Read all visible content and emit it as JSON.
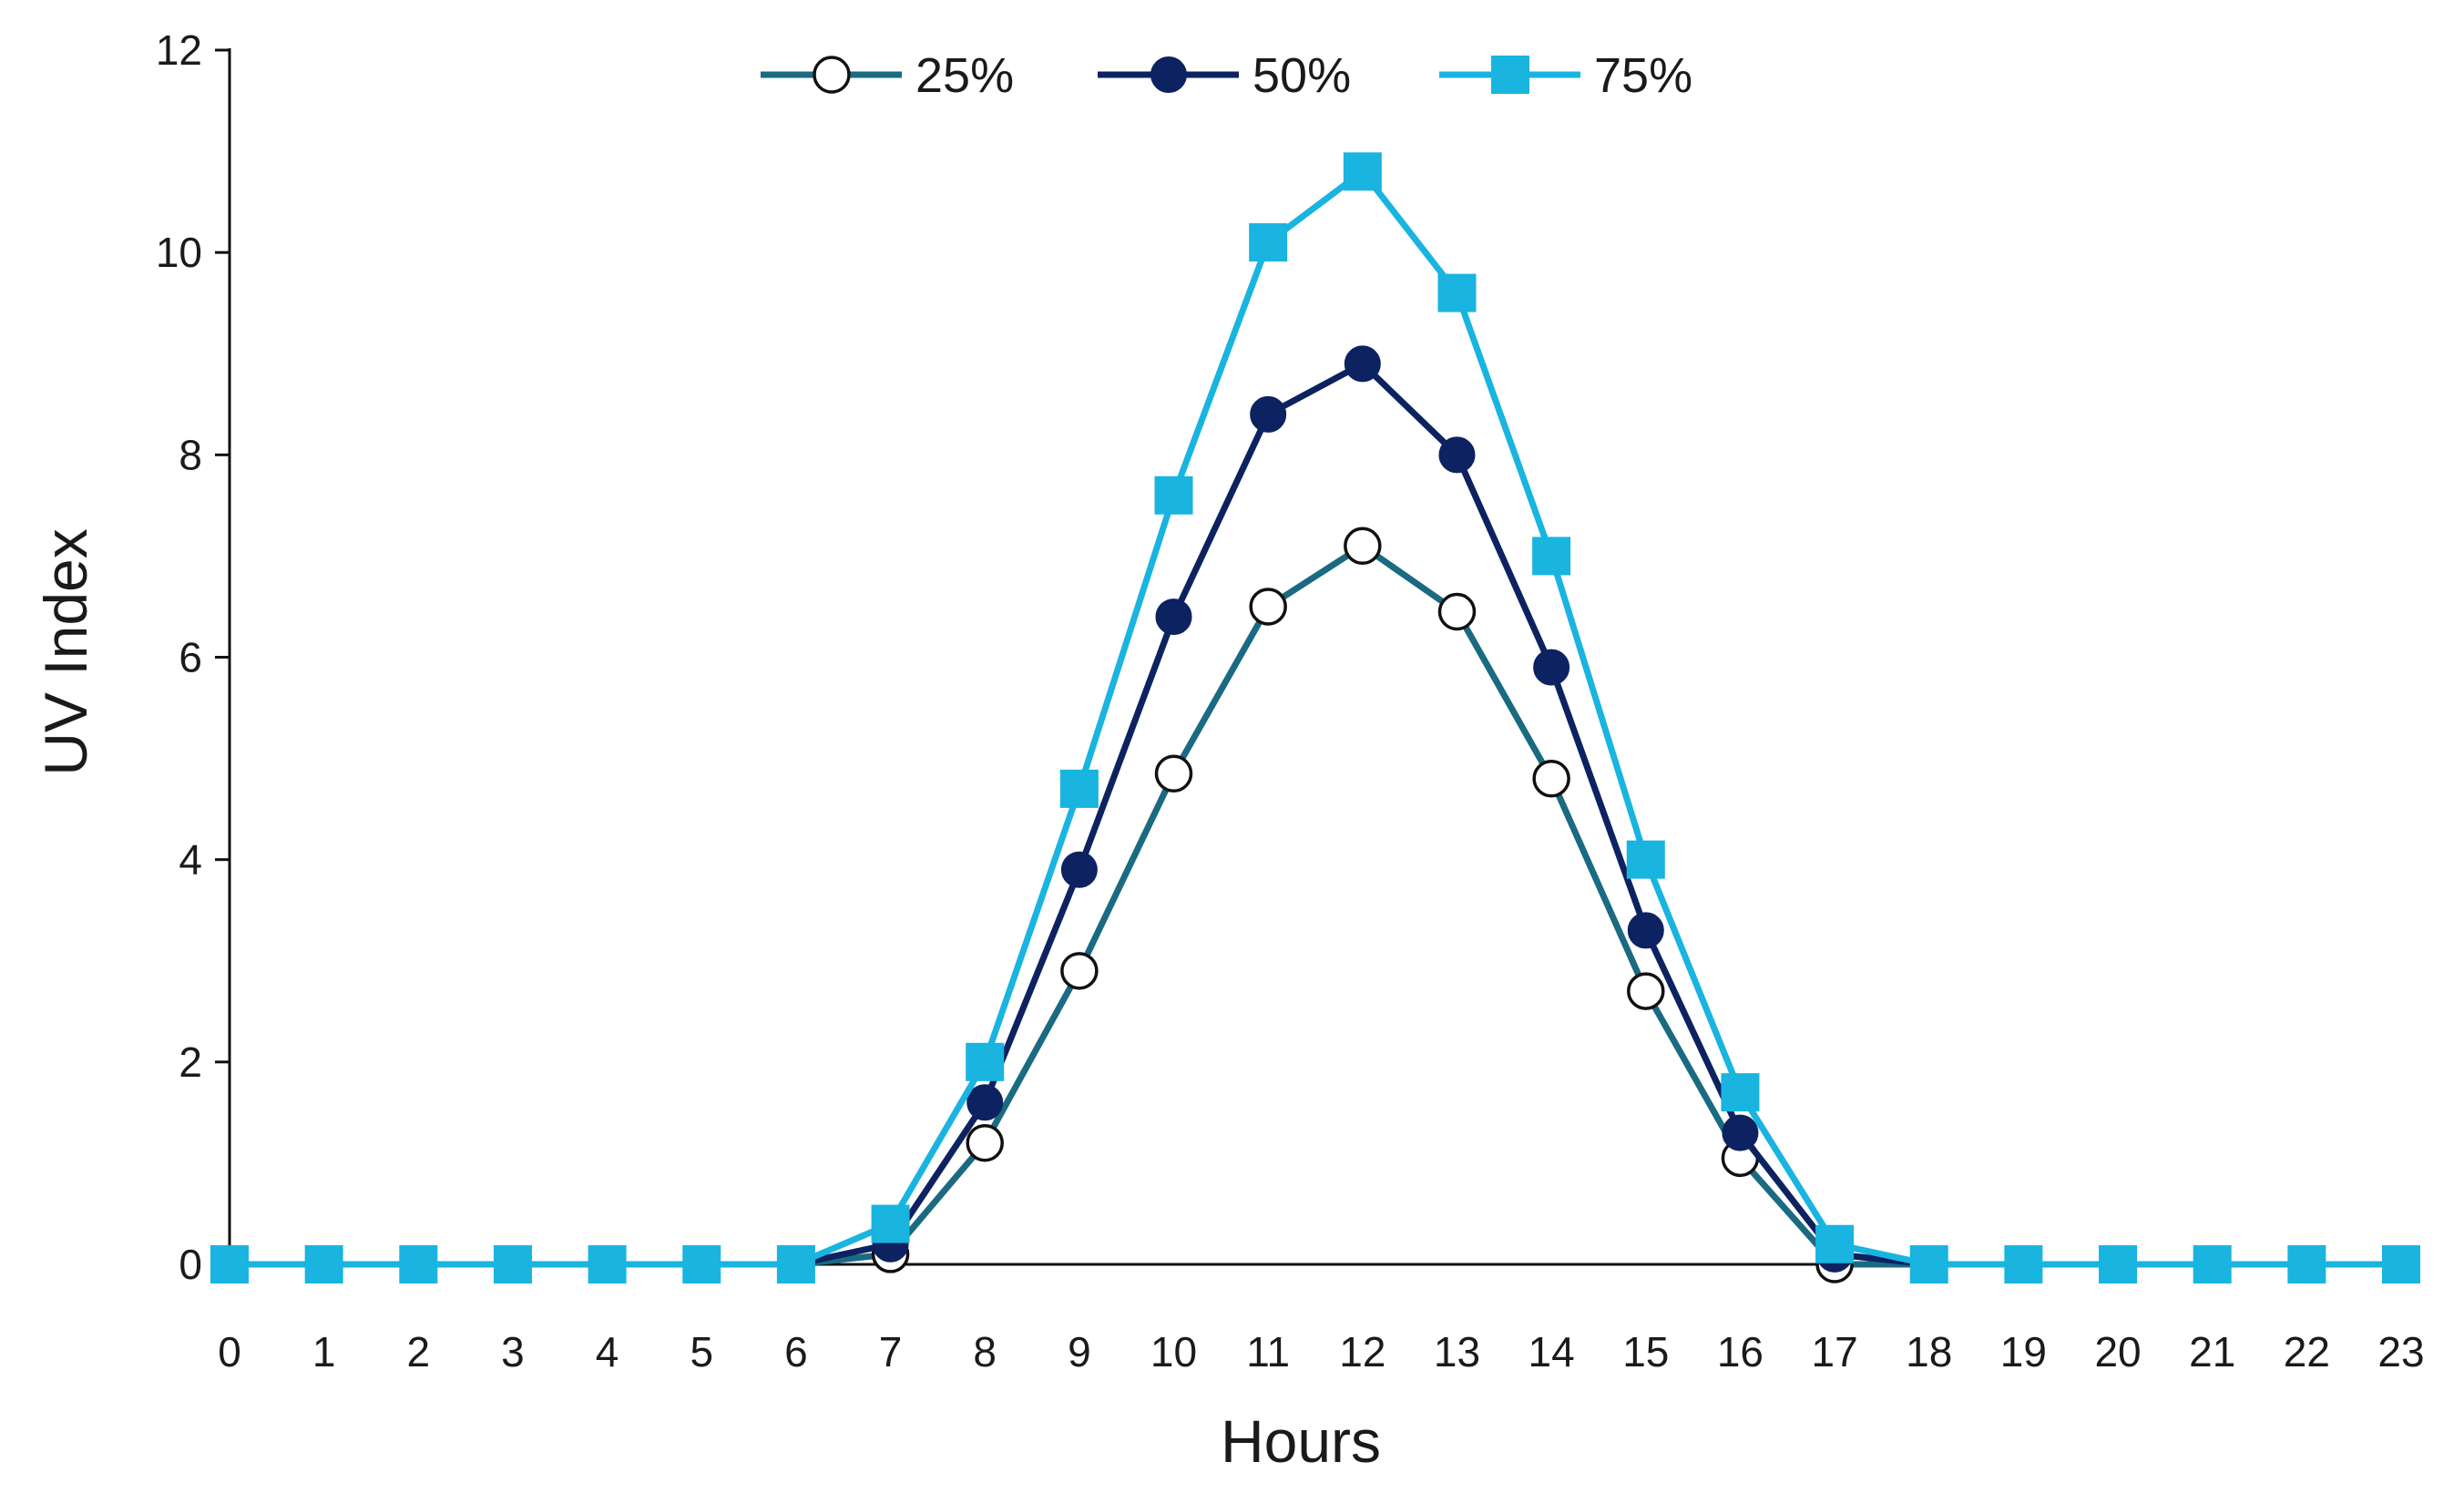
{
  "chart_data": {
    "type": "line",
    "title": "",
    "xlabel": "Hours",
    "ylabel": "UV Index",
    "x": [
      0,
      1,
      2,
      3,
      4,
      5,
      6,
      7,
      8,
      9,
      10,
      11,
      12,
      13,
      14,
      15,
      16,
      17,
      18,
      19,
      20,
      21,
      22,
      23
    ],
    "xlim": [
      0,
      23
    ],
    "ylim": [
      0,
      12
    ],
    "yticks": [
      0,
      2,
      4,
      6,
      8,
      10,
      12
    ],
    "grid": false,
    "legend_position": "top",
    "series": [
      {
        "name": "25%",
        "marker": "circle-open",
        "color": "#1a6a82",
        "values": [
          0,
          0,
          0,
          0,
          0,
          0,
          0,
          0.1,
          1.2,
          2.9,
          4.85,
          6.5,
          7.1,
          6.45,
          4.8,
          2.7,
          1.05,
          0,
          0,
          0,
          0,
          0,
          0,
          0
        ]
      },
      {
        "name": "50%",
        "marker": "circle-filled",
        "color": "#0d2260",
        "values": [
          0,
          0,
          0,
          0,
          0,
          0,
          0,
          0.2,
          1.6,
          3.9,
          6.4,
          8.4,
          8.9,
          8.0,
          5.9,
          3.3,
          1.3,
          0.1,
          0,
          0,
          0,
          0,
          0,
          0
        ]
      },
      {
        "name": "75%",
        "marker": "square-filled",
        "color": "#19b4e0",
        "values": [
          0,
          0,
          0,
          0,
          0,
          0,
          0,
          0.4,
          2.0,
          4.7,
          7.6,
          10.1,
          10.8,
          9.6,
          7.0,
          4.0,
          1.7,
          0.2,
          0,
          0,
          0,
          0,
          0,
          0
        ]
      }
    ]
  }
}
